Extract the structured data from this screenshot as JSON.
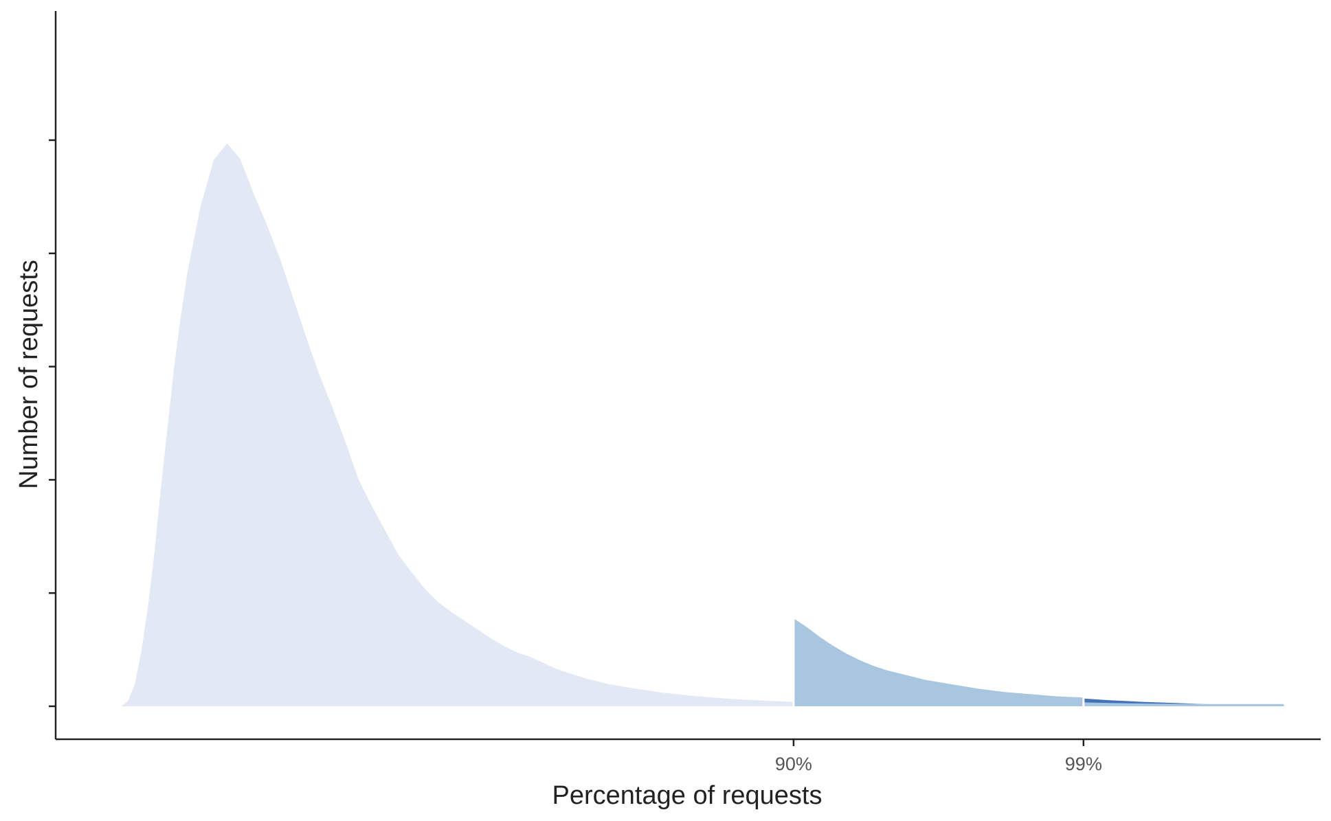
{
  "chart_data": {
    "type": "area",
    "title": "",
    "xlabel": "Percentage of requests",
    "ylabel": "Number of requests",
    "x_tick_labels": [
      {
        "label": "90%",
        "at": 30.0
      },
      {
        "label": "99%",
        "at": 52.0
      }
    ],
    "y_tick_count": 5,
    "xlim": [
      -26,
      70
    ],
    "ylim": [
      0,
      5.2
    ],
    "grid": false,
    "legend": "none",
    "colors": {
      "below_90": "#e2e9f5",
      "p90_to_p99": "#a8c6e0",
      "p99_tail_dark": "#4472b8",
      "p99_tail_light": "#a8c6e0",
      "axis": "#222222"
    },
    "series": [
      {
        "segment": "below_90",
        "x": [
          -21,
          -20.5,
          -20,
          -19.5,
          -19,
          -18.5,
          -18,
          -17.5,
          -17,
          -16.5,
          -16,
          -15,
          -14,
          -13,
          -12,
          -11,
          -10,
          -9,
          -8,
          -7,
          -6,
          -5,
          -4,
          -3,
          -2,
          -1,
          0,
          1,
          2,
          3,
          4,
          5,
          6,
          7,
          8,
          9,
          10,
          12,
          14,
          16,
          18,
          20,
          22,
          24,
          26,
          28,
          30
        ],
        "y": [
          0,
          0.05,
          0.2,
          0.5,
          0.9,
          1.4,
          2.0,
          2.55,
          3.1,
          3.55,
          3.95,
          4.55,
          4.97,
          5.12,
          4.98,
          4.67,
          4.39,
          4.08,
          3.72,
          3.36,
          3.02,
          2.72,
          2.4,
          2.06,
          1.82,
          1.6,
          1.38,
          1.22,
          1.07,
          0.95,
          0.86,
          0.78,
          0.7,
          0.62,
          0.55,
          0.49,
          0.45,
          0.34,
          0.26,
          0.2,
          0.16,
          0.125,
          0.098,
          0.078,
          0.062,
          0.05,
          0.04
        ]
      },
      {
        "segment": "p90_to_p99",
        "x": [
          30,
          31,
          32,
          33,
          34,
          35,
          36,
          37,
          38,
          39,
          40,
          42,
          44,
          46,
          48,
          50,
          52
        ],
        "y": [
          0.8,
          0.72,
          0.63,
          0.55,
          0.48,
          0.42,
          0.37,
          0.33,
          0.3,
          0.27,
          0.24,
          0.2,
          0.16,
          0.13,
          0.11,
          0.09,
          0.08
        ]
      },
      {
        "segment": "p99_tail_dark",
        "x": [
          52,
          54,
          56.5,
          59,
          61,
          63,
          67.2
        ],
        "y": [
          0.07,
          0.055,
          0.04,
          0.03,
          0.02,
          0.012,
          0.008
        ]
      },
      {
        "segment": "p99_tail_light",
        "x": [
          52,
          54,
          56.5,
          59,
          61,
          63,
          67.2
        ],
        "y": [
          0.035,
          0.03,
          0.025,
          0.022,
          0.02,
          0.02,
          0.02
        ]
      }
    ]
  }
}
